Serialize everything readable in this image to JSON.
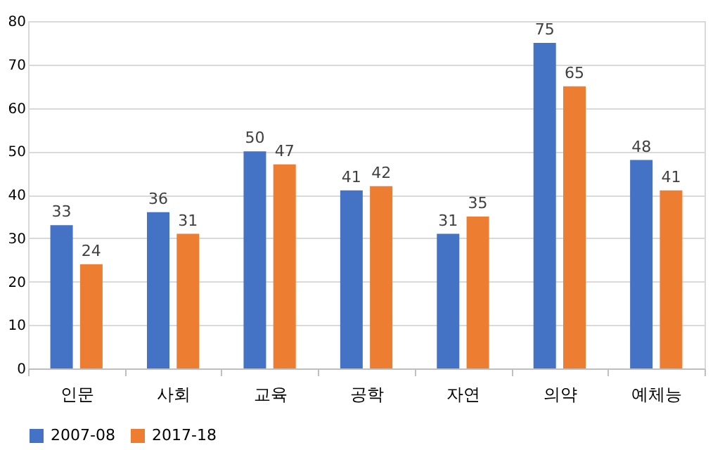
{
  "chart_data": {
    "type": "bar",
    "categories": [
      "인문",
      "사회",
      "교육",
      "공학",
      "자연",
      "의약",
      "예체능"
    ],
    "series": [
      {
        "name": "2007-08",
        "color": "#4472c4",
        "values": [
          33,
          36,
          50,
          41,
          31,
          75,
          48
        ]
      },
      {
        "name": "2017-18",
        "color": "#ed7d31",
        "values": [
          24,
          31,
          47,
          42,
          35,
          65,
          41
        ]
      }
    ],
    "ylim": [
      0,
      80
    ],
    "yticks": [
      0,
      10,
      20,
      30,
      40,
      50,
      60,
      70,
      80
    ],
    "grid": "y",
    "legend": "bottom",
    "data_labels": true
  }
}
